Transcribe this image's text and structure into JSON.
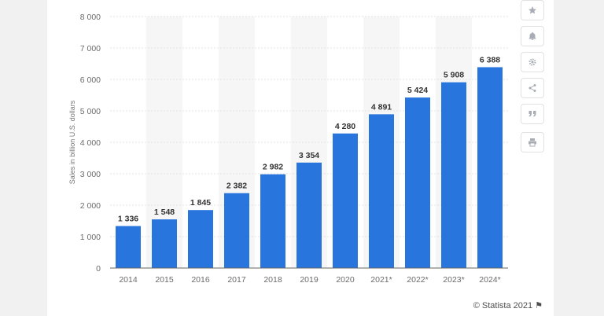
{
  "chart_data": {
    "type": "bar",
    "categories": [
      "2014",
      "2015",
      "2016",
      "2017",
      "2018",
      "2019",
      "2020",
      "2021*",
      "2022*",
      "2023*",
      "2024*"
    ],
    "values": [
      1336,
      1548,
      1845,
      2382,
      2982,
      3354,
      4280,
      4891,
      5424,
      5908,
      6388
    ],
    "value_labels": [
      "1 336",
      "1 548",
      "1 845",
      "2 382",
      "2 982",
      "3 354",
      "4 280",
      "4 891",
      "5 424",
      "5 908",
      "6 388"
    ],
    "ylabel": "Sales in billion U.S. dollars",
    "ylim": [
      0,
      8000
    ],
    "yticks": [
      0,
      1000,
      2000,
      3000,
      4000,
      5000,
      6000,
      7000,
      8000
    ],
    "ytick_labels": [
      "0",
      "1 000",
      "2 000",
      "3 000",
      "4 000",
      "5 000",
      "6 000",
      "7 000",
      "8 000"
    ],
    "grid": true,
    "bar_color": "#2876dd",
    "alt_band_color": "#f6f6f6"
  },
  "sidebar": {
    "buttons": [
      {
        "name": "favorite-star-icon",
        "glyph": "★"
      },
      {
        "name": "notification-bell-icon",
        "glyph": "bell"
      },
      {
        "name": "settings-gear-icon",
        "glyph": "⚙"
      },
      {
        "name": "share-icon",
        "glyph": "share"
      },
      {
        "name": "cite-quote-icon",
        "glyph": "❞"
      },
      {
        "name": "print-icon",
        "glyph": "print"
      }
    ]
  },
  "footer": {
    "credit": "© Statista 2021"
  }
}
